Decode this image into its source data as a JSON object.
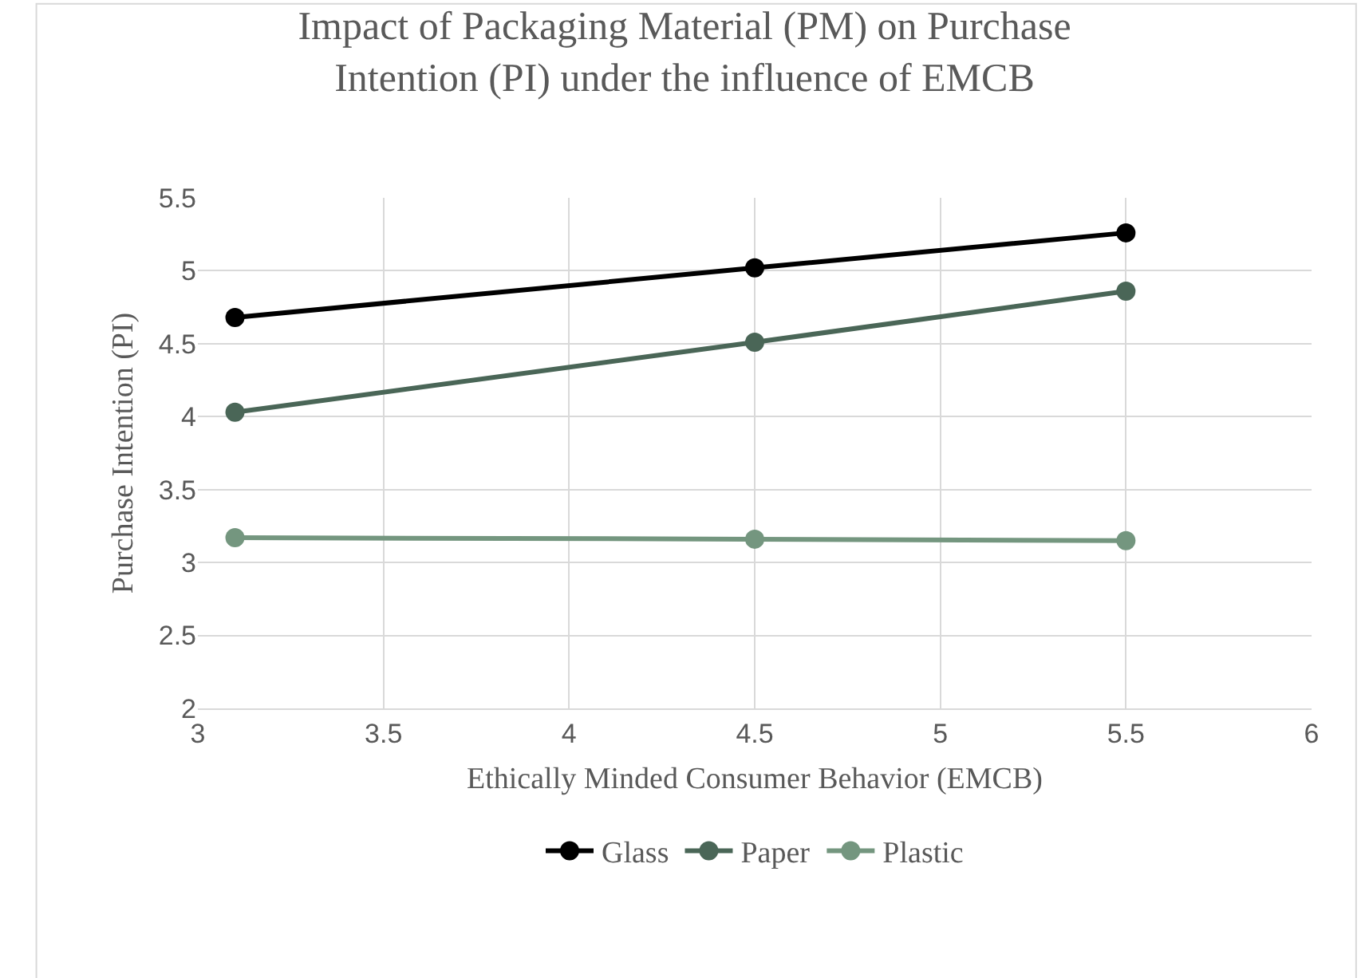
{
  "chart_data": {
    "type": "line",
    "title": "Impact of Packaging Material (PM) on Purchase Intention (PI) under the influence of EMCB",
    "xlabel": "Ethically Minded Consumer Behavior (EMCB)",
    "ylabel": "Purchase Intention (PI)",
    "x": [
      3.1,
      4.5,
      5.5
    ],
    "series": [
      {
        "name": "Glass",
        "color": "#000000",
        "values": [
          4.68,
          5.02,
          5.26
        ]
      },
      {
        "name": "Paper",
        "color": "#4a6657",
        "values": [
          4.03,
          4.51,
          4.86
        ]
      },
      {
        "name": "Plastic",
        "color": "#74967f",
        "values": [
          3.17,
          3.16,
          3.15
        ]
      }
    ],
    "xlim": [
      3,
      6
    ],
    "xticks": [
      3,
      3.5,
      4,
      4.5,
      5,
      5.5,
      6
    ],
    "ylim": [
      2,
      5.5
    ],
    "yticks": [
      2,
      2.5,
      3,
      3.5,
      4,
      4.5,
      5,
      5.5
    ],
    "grid": true,
    "legend": "bottom",
    "marker": "circle",
    "line_style": "solid"
  }
}
